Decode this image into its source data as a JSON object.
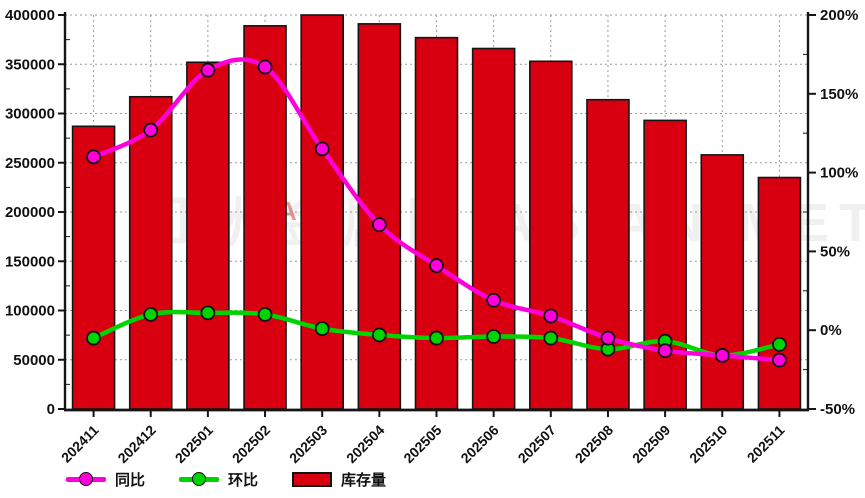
{
  "chart_data": {
    "type": "combo",
    "title": "",
    "categories": [
      "202411",
      "202412",
      "202501",
      "202502",
      "202503",
      "202504",
      "202505",
      "202506",
      "202507",
      "202508",
      "202509",
      "202510",
      "202511"
    ],
    "series": [
      {
        "name": "同比",
        "type": "line",
        "y_axis": "right",
        "unit": "%",
        "color": "#ff00dd",
        "values": [
          110,
          127,
          165,
          167,
          115,
          67,
          41,
          19,
          9,
          -5,
          -13,
          -16,
          -19
        ]
      },
      {
        "name": "环比",
        "type": "line",
        "y_axis": "right",
        "unit": "%",
        "color": "#00d400",
        "values": [
          -5,
          10,
          11,
          10,
          1,
          -3,
          -5,
          -4,
          -5,
          -12,
          -7,
          -16,
          -9
        ]
      },
      {
        "name": "库存量",
        "type": "bar",
        "y_axis": "left",
        "color": "#d80010",
        "values": [
          287000,
          317000,
          352000,
          389000,
          400000,
          391000,
          377000,
          366000,
          353000,
          314000,
          293000,
          258000,
          235000
        ]
      }
    ],
    "left_axis": {
      "min": 0,
      "max": 400000,
      "step": 50000,
      "minor_step": 25000,
      "tick_labels": [
        "0",
        "50000",
        "100000",
        "150000",
        "200000",
        "250000",
        "300000",
        "350000",
        "400000"
      ]
    },
    "right_axis": {
      "min": -50,
      "max": 200,
      "step": 50,
      "minor_step": 25,
      "tick_labels": [
        "-50%",
        "0%",
        "50%",
        "100%",
        "150%",
        "200%"
      ]
    },
    "grid": "dotted",
    "legend_position": "bottom",
    "background": "#ffffff"
  },
  "watermark": {
    "text": "亚洲金属网 ASIAN METAL",
    "accent_letter": "A"
  },
  "colors": {
    "axis": "#151515",
    "grid": "#9a9a9a",
    "label": "#111111",
    "bar_stroke": "#151515"
  }
}
